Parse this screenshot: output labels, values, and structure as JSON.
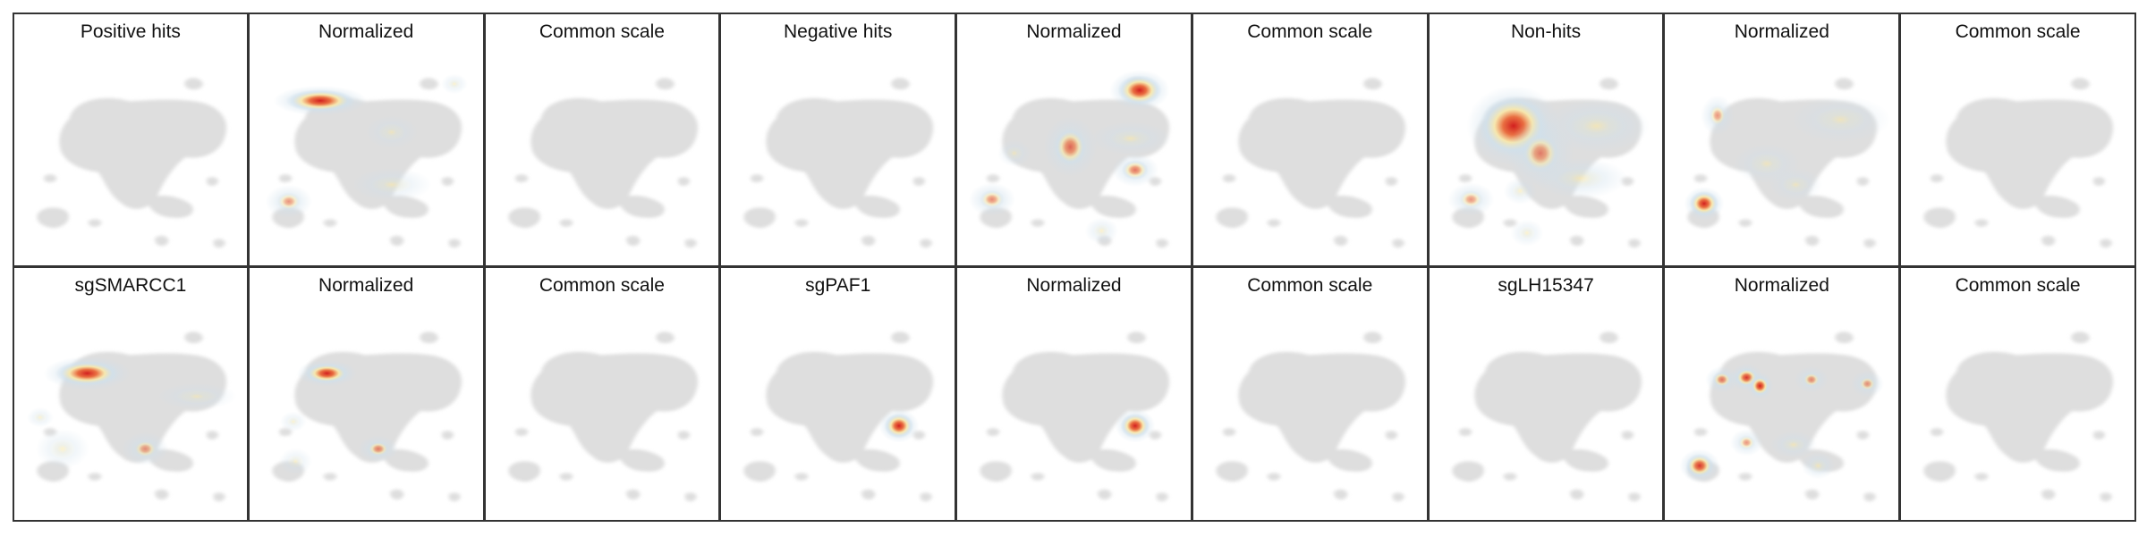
{
  "figure": {
    "rows": 2,
    "cols": 9,
    "colors": {
      "background_cells": "#dedede",
      "colormap_low": "#cfe0ec",
      "colormap_mid": "#fbe8a6",
      "colormap_high": "#d21f1f"
    }
  },
  "chart_data": {
    "type": "heatmap",
    "panels": [
      {
        "title": "Positive hits",
        "scale": "common",
        "hotspots": []
      },
      {
        "title": "Normalized",
        "scale": "normalized",
        "hotspots": [
          {
            "x": 0.28,
            "y": 0.25,
            "rx": 0.14,
            "ry": 0.045,
            "intensity": 1.0
          },
          {
            "x": 0.88,
            "y": 0.17,
            "rx": 0.04,
            "ry": 0.03,
            "intensity": 0.15
          },
          {
            "x": 0.14,
            "y": 0.73,
            "rx": 0.07,
            "ry": 0.05,
            "intensity": 0.45
          },
          {
            "x": 0.6,
            "y": 0.65,
            "rx": 0.12,
            "ry": 0.05,
            "intensity": 0.2
          },
          {
            "x": 0.6,
            "y": 0.4,
            "rx": 0.08,
            "ry": 0.05,
            "intensity": 0.1
          }
        ]
      },
      {
        "title": "Common scale",
        "scale": "common",
        "hotspots": []
      },
      {
        "title": "Negative hits",
        "scale": "common",
        "hotspots": []
      },
      {
        "title": "Normalized",
        "scale": "normalized",
        "hotspots": [
          {
            "x": 0.78,
            "y": 0.2,
            "rx": 0.09,
            "ry": 0.06,
            "intensity": 1.0
          },
          {
            "x": 0.47,
            "y": 0.47,
            "rx": 0.08,
            "ry": 0.09,
            "intensity": 0.65
          },
          {
            "x": 0.74,
            "y": 0.43,
            "rx": 0.12,
            "ry": 0.05,
            "intensity": 0.25
          },
          {
            "x": 0.76,
            "y": 0.58,
            "rx": 0.07,
            "ry": 0.05,
            "intensity": 0.6
          },
          {
            "x": 0.12,
            "y": 0.72,
            "rx": 0.07,
            "ry": 0.05,
            "intensity": 0.5
          },
          {
            "x": 0.61,
            "y": 0.87,
            "rx": 0.05,
            "ry": 0.04,
            "intensity": 0.2
          },
          {
            "x": 0.22,
            "y": 0.5,
            "rx": 0.05,
            "ry": 0.04,
            "intensity": 0.15
          }
        ]
      },
      {
        "title": "Common scale",
        "scale": "common",
        "hotspots": []
      },
      {
        "title": "Non-hits",
        "scale": "normalized",
        "hotspots": [
          {
            "x": 0.34,
            "y": 0.37,
            "rx": 0.14,
            "ry": 0.12,
            "intensity": 1.0
          },
          {
            "x": 0.46,
            "y": 0.5,
            "rx": 0.1,
            "ry": 0.1,
            "intensity": 0.55
          },
          {
            "x": 0.71,
            "y": 0.37,
            "rx": 0.16,
            "ry": 0.08,
            "intensity": 0.35
          },
          {
            "x": 0.64,
            "y": 0.62,
            "rx": 0.14,
            "ry": 0.06,
            "intensity": 0.35
          },
          {
            "x": 0.15,
            "y": 0.72,
            "rx": 0.07,
            "ry": 0.05,
            "intensity": 0.45
          },
          {
            "x": 0.37,
            "y": 0.68,
            "rx": 0.05,
            "ry": 0.04,
            "intensity": 0.2
          },
          {
            "x": 0.4,
            "y": 0.88,
            "rx": 0.05,
            "ry": 0.04,
            "intensity": 0.15
          }
        ]
      },
      {
        "title": "Normalized",
        "scale": "normalized",
        "hotspots": [
          {
            "x": 0.14,
            "y": 0.74,
            "rx": 0.06,
            "ry": 0.05,
            "intensity": 1.0
          },
          {
            "x": 0.2,
            "y": 0.32,
            "rx": 0.05,
            "ry": 0.06,
            "intensity": 0.45
          },
          {
            "x": 0.75,
            "y": 0.34,
            "rx": 0.15,
            "ry": 0.07,
            "intensity": 0.15
          },
          {
            "x": 0.42,
            "y": 0.55,
            "rx": 0.1,
            "ry": 0.06,
            "intensity": 0.15
          },
          {
            "x": 0.55,
            "y": 0.65,
            "rx": 0.08,
            "ry": 0.05,
            "intensity": 0.1
          }
        ]
      },
      {
        "title": "Common scale",
        "scale": "common",
        "hotspots": []
      },
      {
        "title": "sgSMARCC1",
        "scale": "normalized",
        "hotspots": [
          {
            "x": 0.29,
            "y": 0.34,
            "rx": 0.13,
            "ry": 0.05,
            "intensity": 1.0
          },
          {
            "x": 0.18,
            "y": 0.7,
            "rx": 0.08,
            "ry": 0.06,
            "intensity": 0.15
          },
          {
            "x": 0.55,
            "y": 0.7,
            "rx": 0.07,
            "ry": 0.05,
            "intensity": 0.45
          },
          {
            "x": 0.08,
            "y": 0.55,
            "rx": 0.04,
            "ry": 0.03,
            "intensity": 0.12
          },
          {
            "x": 0.78,
            "y": 0.45,
            "rx": 0.12,
            "ry": 0.04,
            "intensity": 0.1
          }
        ]
      },
      {
        "title": "Normalized",
        "scale": "normalized",
        "hotspots": [
          {
            "x": 0.31,
            "y": 0.34,
            "rx": 0.09,
            "ry": 0.04,
            "intensity": 1.0
          },
          {
            "x": 0.54,
            "y": 0.7,
            "rx": 0.06,
            "ry": 0.04,
            "intensity": 0.55
          },
          {
            "x": 0.16,
            "y": 0.57,
            "rx": 0.04,
            "ry": 0.03,
            "intensity": 0.12
          },
          {
            "x": 0.17,
            "y": 0.76,
            "rx": 0.05,
            "ry": 0.04,
            "intensity": 0.1
          }
        ]
      },
      {
        "title": "Common scale",
        "scale": "common",
        "hotspots": []
      },
      {
        "title": "sgPAF1",
        "scale": "normalized",
        "hotspots": [
          {
            "x": 0.76,
            "y": 0.59,
            "rx": 0.06,
            "ry": 0.05,
            "intensity": 1.0
          }
        ]
      },
      {
        "title": "Normalized",
        "scale": "normalized",
        "hotspots": [
          {
            "x": 0.76,
            "y": 0.59,
            "rx": 0.06,
            "ry": 0.05,
            "intensity": 1.0
          }
        ]
      },
      {
        "title": "Common scale",
        "scale": "common",
        "hotspots": []
      },
      {
        "title": "sgLH15347",
        "scale": "common",
        "hotspots": []
      },
      {
        "title": "Normalized",
        "scale": "normalized",
        "hotspots": [
          {
            "x": 0.33,
            "y": 0.36,
            "rx": 0.05,
            "ry": 0.04,
            "intensity": 0.9
          },
          {
            "x": 0.39,
            "y": 0.4,
            "rx": 0.04,
            "ry": 0.04,
            "intensity": 1.0
          },
          {
            "x": 0.22,
            "y": 0.37,
            "rx": 0.05,
            "ry": 0.04,
            "intensity": 0.6
          },
          {
            "x": 0.62,
            "y": 0.37,
            "rx": 0.05,
            "ry": 0.04,
            "intensity": 0.5
          },
          {
            "x": 0.87,
            "y": 0.39,
            "rx": 0.05,
            "ry": 0.04,
            "intensity": 0.45
          },
          {
            "x": 0.12,
            "y": 0.78,
            "rx": 0.06,
            "ry": 0.05,
            "intensity": 0.9
          },
          {
            "x": 0.33,
            "y": 0.67,
            "rx": 0.05,
            "ry": 0.04,
            "intensity": 0.45
          },
          {
            "x": 0.54,
            "y": 0.68,
            "rx": 0.07,
            "ry": 0.04,
            "intensity": 0.3
          },
          {
            "x": 0.65,
            "y": 0.78,
            "rx": 0.05,
            "ry": 0.04,
            "intensity": 0.35
          }
        ]
      },
      {
        "title": "Common scale",
        "scale": "common",
        "hotspots": []
      }
    ]
  }
}
